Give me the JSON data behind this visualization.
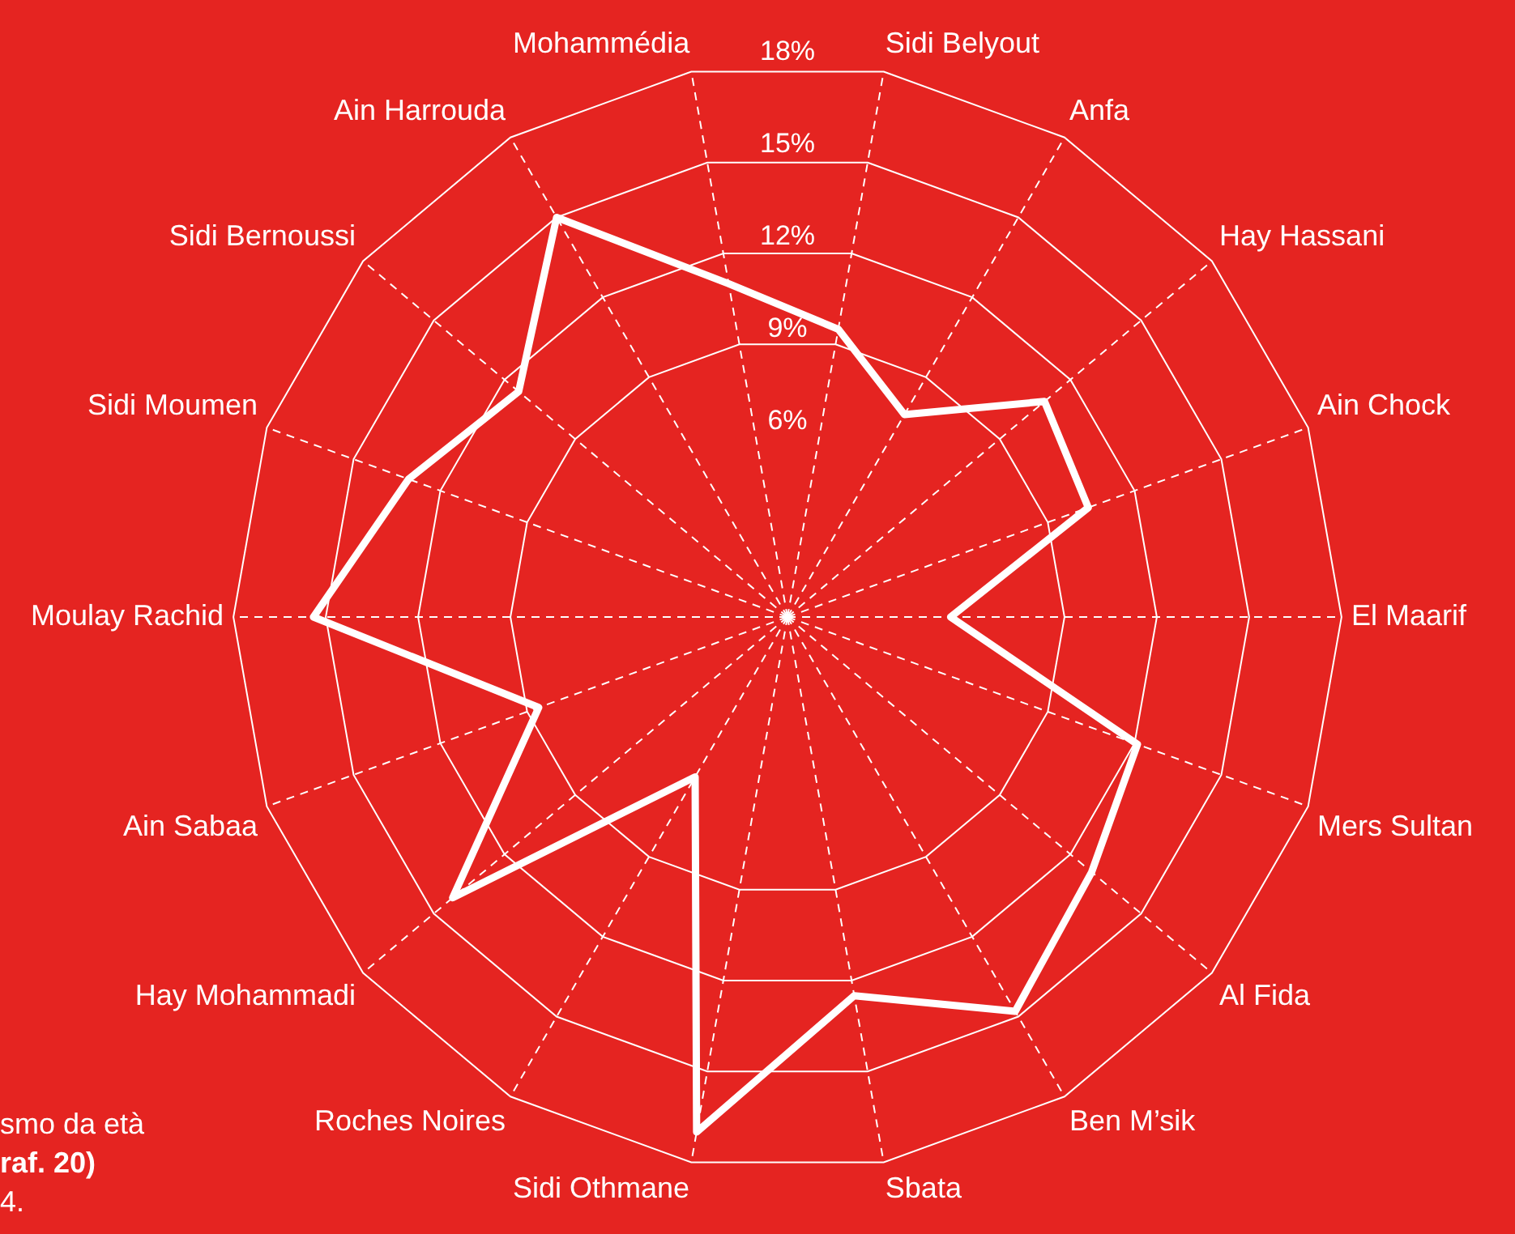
{
  "chart_data": {
    "type": "radar",
    "categories": [
      "Sidi Belyout",
      "Anfa",
      "Hay Hassani",
      "Ain Chock",
      "El Maarif",
      "Mers Sultan",
      "Al Fida",
      "Ben M’sik",
      "Sbata",
      "Sidi Othmane",
      "Roches Noires",
      "Hay Mohammadi",
      "Ain Sabaa",
      "Moulay Rachid",
      "Sidi Moumen",
      "Sidi Bernoussi",
      "Ain Harrouda",
      "Mohammédia"
    ],
    "series": [
      {
        "color": "#ffffff",
        "values": [
          9.5,
          7.6,
          10.9,
          10.4,
          5.3,
          12.1,
          12.9,
          14.8,
          12.5,
          17.0,
          6.0,
          14.2,
          8.6,
          15.4,
          13.1,
          11.4,
          15.0,
          11.0
        ]
      }
    ],
    "ylim": [
      0,
      18
    ],
    "yticks": [
      {
        "value": 6,
        "label": "6%"
      },
      {
        "value": 9,
        "label": "9%"
      },
      {
        "value": 12,
        "label": "12%"
      },
      {
        "value": 15,
        "label": "15%"
      },
      {
        "value": 18,
        "label": "18%"
      }
    ],
    "grid": true,
    "legend": false,
    "marker": "none",
    "line_style": "solid",
    "annotations": [
      "smo da età",
      "raf. 20)",
      "4."
    ]
  }
}
